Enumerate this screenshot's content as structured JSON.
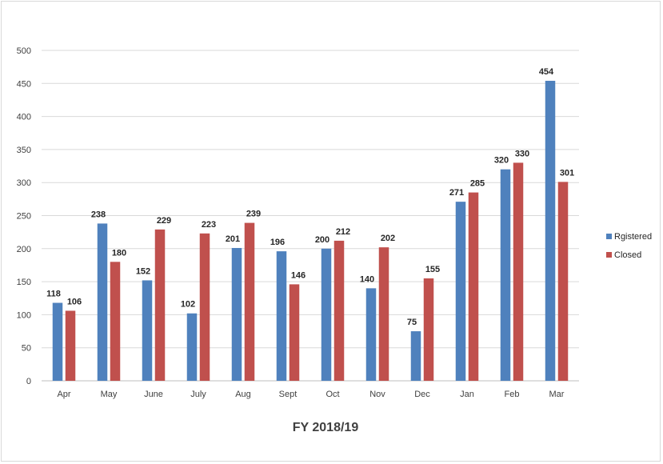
{
  "chart_data": {
    "type": "bar",
    "categories": [
      "Apr",
      "May",
      "June",
      "July",
      "Aug",
      "Sept",
      "Oct",
      "Nov",
      "Dec",
      "Jan",
      "Feb",
      "Mar"
    ],
    "series": [
      {
        "name": "Rgistered",
        "color": "#4f81bd",
        "values": [
          118,
          238,
          152,
          102,
          201,
          196,
          200,
          140,
          75,
          271,
          320,
          454
        ]
      },
      {
        "name": "Closed",
        "color": "#c0504d",
        "values": [
          106,
          180,
          229,
          223,
          239,
          146,
          212,
          202,
          155,
          285,
          330,
          301
        ]
      }
    ],
    "xlabel": "FY 2018/19",
    "ylabel": "",
    "ylim": [
      0,
      500
    ],
    "yticks": [
      0,
      50,
      100,
      150,
      200,
      250,
      300,
      350,
      400,
      450,
      500
    ],
    "grid": true,
    "data_labels": true,
    "legend_position": "right"
  }
}
